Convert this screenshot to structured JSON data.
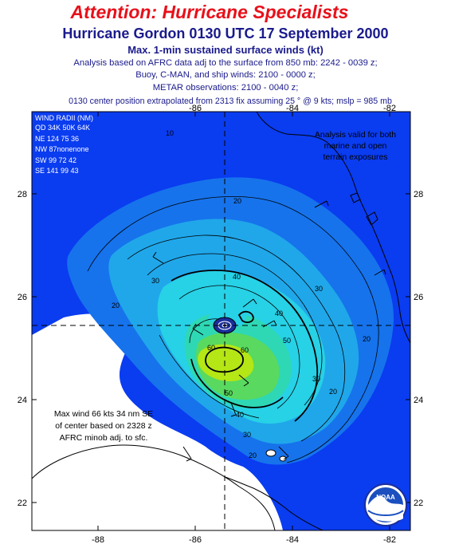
{
  "header": {
    "attention": "Attention:  Hurricane Specialists",
    "title": "Hurricane Gordon 0130 UTC 17 September 2000",
    "subtitle": "Max. 1-min sustained surface winds (kt)",
    "info": [
      "Analysis based on AFRC data adj to the surface from 850 mb: 2242 - 0039 z;",
      "Buoy, C-MAN, and ship winds: 2100 - 0000 z;",
      "METAR observations: 2100 - 0040 z;",
      "0130 center position extrapolated from 2313 fix assuming 25 ° @ 9 kts; mslp = 985 mb"
    ]
  },
  "map": {
    "lon_ticks_top": [
      "-86",
      "-84",
      "-82"
    ],
    "lon_ticks_bottom": [
      "-88",
      "-86",
      "-84",
      "-82"
    ],
    "lat_ticks": [
      "28",
      "26",
      "24",
      "22"
    ],
    "contour_labels": [
      "10",
      "20",
      "20",
      "20",
      "20",
      "20",
      "30",
      "30",
      "30",
      "30",
      "40",
      "40",
      "40",
      "50",
      "50",
      "60",
      "60"
    ],
    "colors": {
      "wind_10": "#0a3cf0",
      "wind_20": "#1673ec",
      "wind_30": "#20a7ea",
      "wind_40": "#27d1e6",
      "wind_50": "#2ed8b5",
      "wind_55": "#59d95f",
      "wind_60": "#b5e615",
      "eye": "#1a2e9c",
      "land": "#ffffff"
    }
  },
  "wind_radii": {
    "title": "WIND RADII (NM)",
    "header": "QD 34K 50K 64K",
    "rows": [
      "NE 124  75  36",
      "NW  87nonenone",
      "SW  99  72  42",
      "SE 141  99  43"
    ]
  },
  "notes": {
    "analysis_valid": [
      "Analysis valid for both",
      "marine and open",
      "terrain exposures"
    ],
    "max_wind": [
      "Max wind 66 kts 34 nm SE",
      "of center based on 2328 z",
      "AFRC minob adj. to sfc."
    ]
  },
  "logo": {
    "text": "NOAA"
  }
}
